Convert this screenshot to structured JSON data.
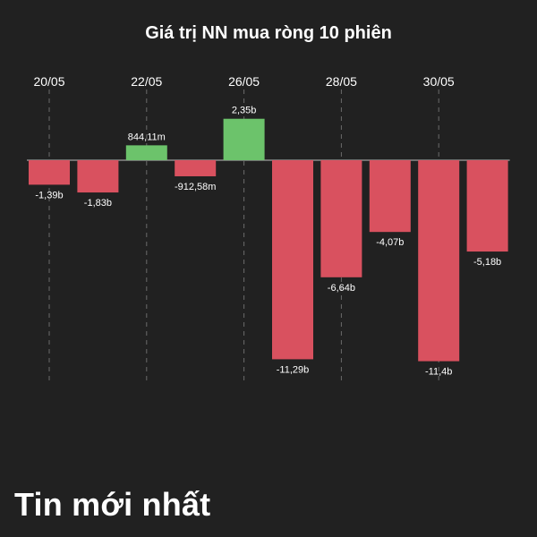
{
  "chart_data": {
    "type": "bar",
    "title": "Giá trị NN mua ròng 10 phiên",
    "unit": "b",
    "categories": [
      "",
      "",
      "",
      "",
      "",
      "",
      "",
      "",
      "",
      ""
    ],
    "values": [
      -1.39,
      -1.83,
      0.84411,
      -0.91258,
      2.35,
      -11.29,
      -6.64,
      -4.07,
      -11.4,
      -5.18
    ],
    "data_labels": [
      "-1,39b",
      "-1,83b",
      "844,11m",
      "-912,58m",
      "2,35b",
      "-11,29b",
      "-6,64b",
      "-4,07b",
      "-11,4b",
      "-5,18b"
    ],
    "date_ticks": [
      "20/05",
      "22/05",
      "26/05",
      "28/05",
      "30/05"
    ],
    "date_tick_bar_index": [
      0,
      2,
      4,
      6,
      8
    ],
    "ylim": [
      -11.4,
      2.35
    ],
    "grid": "vertical-dashed-at-date-ticks",
    "legend": "none",
    "colors": {
      "positive": "#6cc36b",
      "negative": "#d9515f",
      "grid": "#6b6b6b",
      "text": "#ffffff",
      "background": "#212121"
    }
  },
  "section": {
    "title": "Tin mới nhất"
  }
}
